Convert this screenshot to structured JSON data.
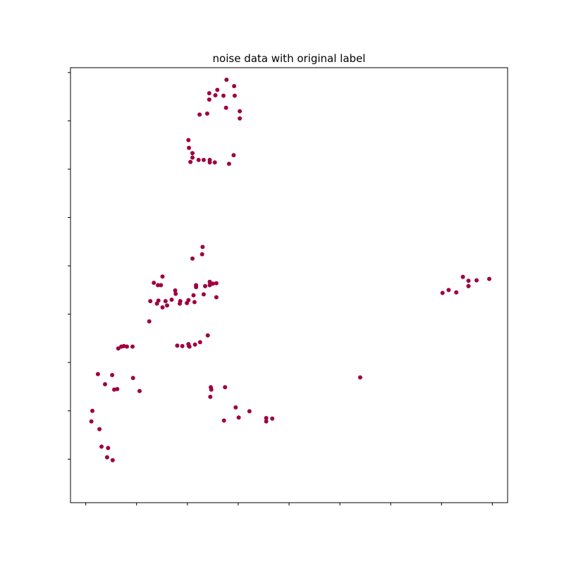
{
  "chart_data": {
    "type": "scatter",
    "title": "noise data with original label",
    "xlabel": "",
    "ylabel": "",
    "xlim": [
      -0.3,
      8.3
    ],
    "ylim": [
      -0.9,
      8.1
    ],
    "x_ticks": [
      0,
      1,
      2,
      3,
      4,
      5,
      6,
      7,
      8
    ],
    "y_ticks": [
      0,
      1,
      2,
      3,
      4,
      5,
      6,
      7,
      8
    ],
    "tick_labels_shown": false,
    "grid": false,
    "legend": "none",
    "color": "#9e0142",
    "series": [
      {
        "points": [
          [
            2.77,
            7.85
          ],
          [
            2.59,
            7.64
          ],
          [
            2.92,
            7.72
          ],
          [
            2.43,
            7.57
          ],
          [
            2.71,
            7.52
          ],
          [
            2.55,
            7.53
          ],
          [
            2.43,
            7.44
          ],
          [
            2.93,
            7.52
          ],
          [
            2.76,
            7.27
          ],
          [
            3.03,
            7.2
          ],
          [
            2.39,
            7.15
          ],
          [
            2.24,
            7.13
          ],
          [
            3.03,
            7.05
          ],
          [
            2.02,
            6.6
          ],
          [
            2.03,
            6.44
          ],
          [
            2.1,
            6.33
          ],
          [
            2.1,
            6.24
          ],
          [
            2.91,
            6.29
          ],
          [
            2.22,
            6.19
          ],
          [
            2.32,
            6.19
          ],
          [
            2.44,
            6.19
          ],
          [
            2.44,
            6.14
          ],
          [
            2.06,
            6.15
          ],
          [
            2.54,
            6.14
          ],
          [
            2.82,
            6.11
          ],
          [
            2.3,
            4.39
          ],
          [
            2.29,
            4.24
          ],
          [
            2.1,
            4.15
          ],
          [
            1.51,
            3.78
          ],
          [
            1.42,
            3.6
          ],
          [
            1.34,
            3.65
          ],
          [
            1.48,
            3.6
          ],
          [
            1.76,
            3.49
          ],
          [
            2.44,
            3.67
          ],
          [
            2.5,
            3.63
          ],
          [
            2.57,
            3.64
          ],
          [
            2.35,
            3.58
          ],
          [
            2.17,
            3.6
          ],
          [
            2.17,
            3.56
          ],
          [
            2.44,
            3.6
          ],
          [
            1.77,
            3.42
          ],
          [
            2.32,
            3.41
          ],
          [
            2.12,
            3.39
          ],
          [
            2.57,
            3.35
          ],
          [
            1.27,
            3.27
          ],
          [
            1.43,
            3.28
          ],
          [
            1.57,
            3.27
          ],
          [
            2.02,
            3.29
          ],
          [
            2.14,
            3.25
          ],
          [
            1.69,
            3.3
          ],
          [
            1.86,
            3.27
          ],
          [
            1.99,
            3.23
          ],
          [
            1.4,
            3.22
          ],
          [
            1.85,
            3.22
          ],
          [
            1.6,
            3.18
          ],
          [
            1.51,
            3.14
          ],
          [
            1.25,
            2.85
          ],
          [
            2.4,
            2.56
          ],
          [
            2.25,
            2.42
          ],
          [
            2.15,
            2.37
          ],
          [
            2.02,
            2.38
          ],
          [
            2.03,
            2.34
          ],
          [
            1.8,
            2.35
          ],
          [
            1.9,
            2.34
          ],
          [
            2.04,
            2.33
          ],
          [
            0.7,
            2.33
          ],
          [
            0.75,
            2.34
          ],
          [
            0.81,
            2.33
          ],
          [
            0.92,
            2.33
          ],
          [
            0.64,
            2.29
          ],
          [
            0.24,
            1.76
          ],
          [
            0.52,
            1.74
          ],
          [
            0.93,
            1.68
          ],
          [
            0.38,
            1.55
          ],
          [
            0.62,
            1.45
          ],
          [
            0.56,
            1.44
          ],
          [
            1.06,
            1.41
          ],
          [
            2.46,
            1.49
          ],
          [
            2.47,
            1.44
          ],
          [
            2.74,
            1.49
          ],
          [
            2.45,
            1.29
          ],
          [
            0.13,
            1.0
          ],
          [
            2.95,
            1.07
          ],
          [
            3.22,
            0.99
          ],
          [
            0.11,
            0.78
          ],
          [
            3.01,
            0.86
          ],
          [
            3.55,
            0.85
          ],
          [
            3.67,
            0.84
          ],
          [
            2.72,
            0.8
          ],
          [
            3.55,
            0.78
          ],
          [
            0.27,
            0.62
          ],
          [
            0.31,
            0.26
          ],
          [
            0.44,
            0.23
          ],
          [
            0.42,
            0.04
          ],
          [
            0.53,
            -0.02
          ],
          [
            5.4,
            1.69
          ],
          [
            7.02,
            3.44
          ],
          [
            7.14,
            3.5
          ],
          [
            7.29,
            3.45
          ],
          [
            7.42,
            3.77
          ],
          [
            7.53,
            3.69
          ],
          [
            7.53,
            3.58
          ],
          [
            7.69,
            3.7
          ],
          [
            7.94,
            3.73
          ]
        ]
      }
    ]
  }
}
